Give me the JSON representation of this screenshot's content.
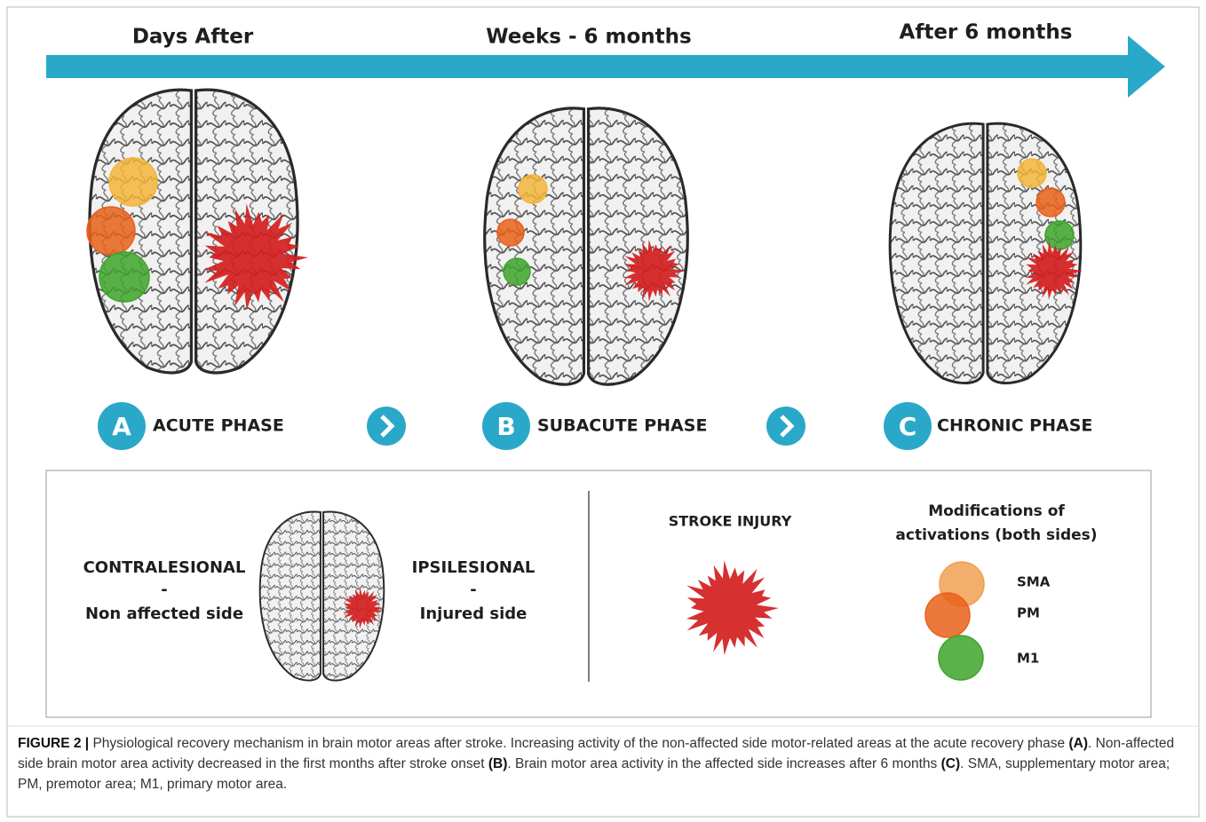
{
  "timeline": [
    "Days After",
    "Weeks - 6 months",
    "After 6 months"
  ],
  "phases": [
    {
      "letter": "A",
      "label": "ACUTE PHASE"
    },
    {
      "letter": "B",
      "label": "SUBACUTE PHASE"
    },
    {
      "letter": "C",
      "label": "CHRONIC PHASE"
    }
  ],
  "legend": {
    "left": {
      "title": "CONTRALESIONAL",
      "dash": "-",
      "subtitle": "Non affected side"
    },
    "right": {
      "title": "IPSILESIONAL",
      "dash": "-",
      "subtitle": "Injured side"
    },
    "stroke_injury": "STROKE INJURY",
    "modifications": [
      "Modifications of",
      "activations (both sides)"
    ],
    "areas": [
      "SMA",
      "PM",
      "M1"
    ]
  },
  "caption": {
    "label": "FIGURE 2 |",
    "parts": [
      " Physiological recovery mechanism in brain motor areas after stroke. Increasing activity of the non-affected side motor-related areas at the acute recovery phase ",
      "(A)",
      ". Non-affected side brain motor area activity decreased in the first months after stroke onset ",
      "(B)",
      ". Brain motor area activity in the affected side increases after 6 months ",
      "(C)",
      ". SMA, supplementary motor area; PM, premotor area; M1, primary motor area."
    ]
  }
}
